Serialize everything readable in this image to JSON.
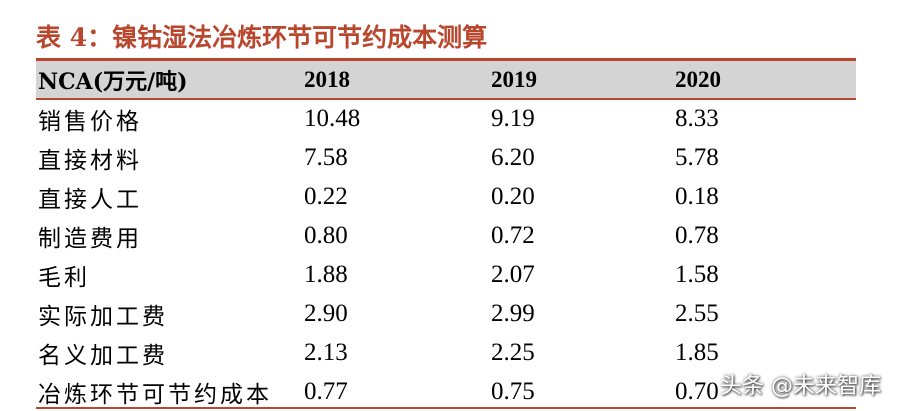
{
  "title": "表 4：镍钴湿法冶炼环节可节约成本测算",
  "table": {
    "headers": [
      "NCA(万元/吨)",
      "2018",
      "2019",
      "2020"
    ],
    "rows": [
      [
        "销售价格",
        "10.48",
        "9.19",
        "8.33"
      ],
      [
        "直接材料",
        "7.58",
        "6.20",
        "5.78"
      ],
      [
        "直接人工",
        "0.22",
        "0.20",
        "0.18"
      ],
      [
        "制造费用",
        "0.80",
        "0.72",
        "0.78"
      ],
      [
        "毛利",
        "1.88",
        "2.07",
        "1.58"
      ],
      [
        "实际加工费",
        "2.90",
        "2.99",
        "2.55"
      ],
      [
        "名义加工费",
        "2.13",
        "2.25",
        "1.85"
      ],
      [
        "冶炼环节可节约成本",
        "0.77",
        "0.75",
        "0.70"
      ]
    ]
  },
  "watermark": "头条 @未来智库",
  "colors": {
    "accent": "#b8472e",
    "header_bg": "#d4d4d4"
  }
}
